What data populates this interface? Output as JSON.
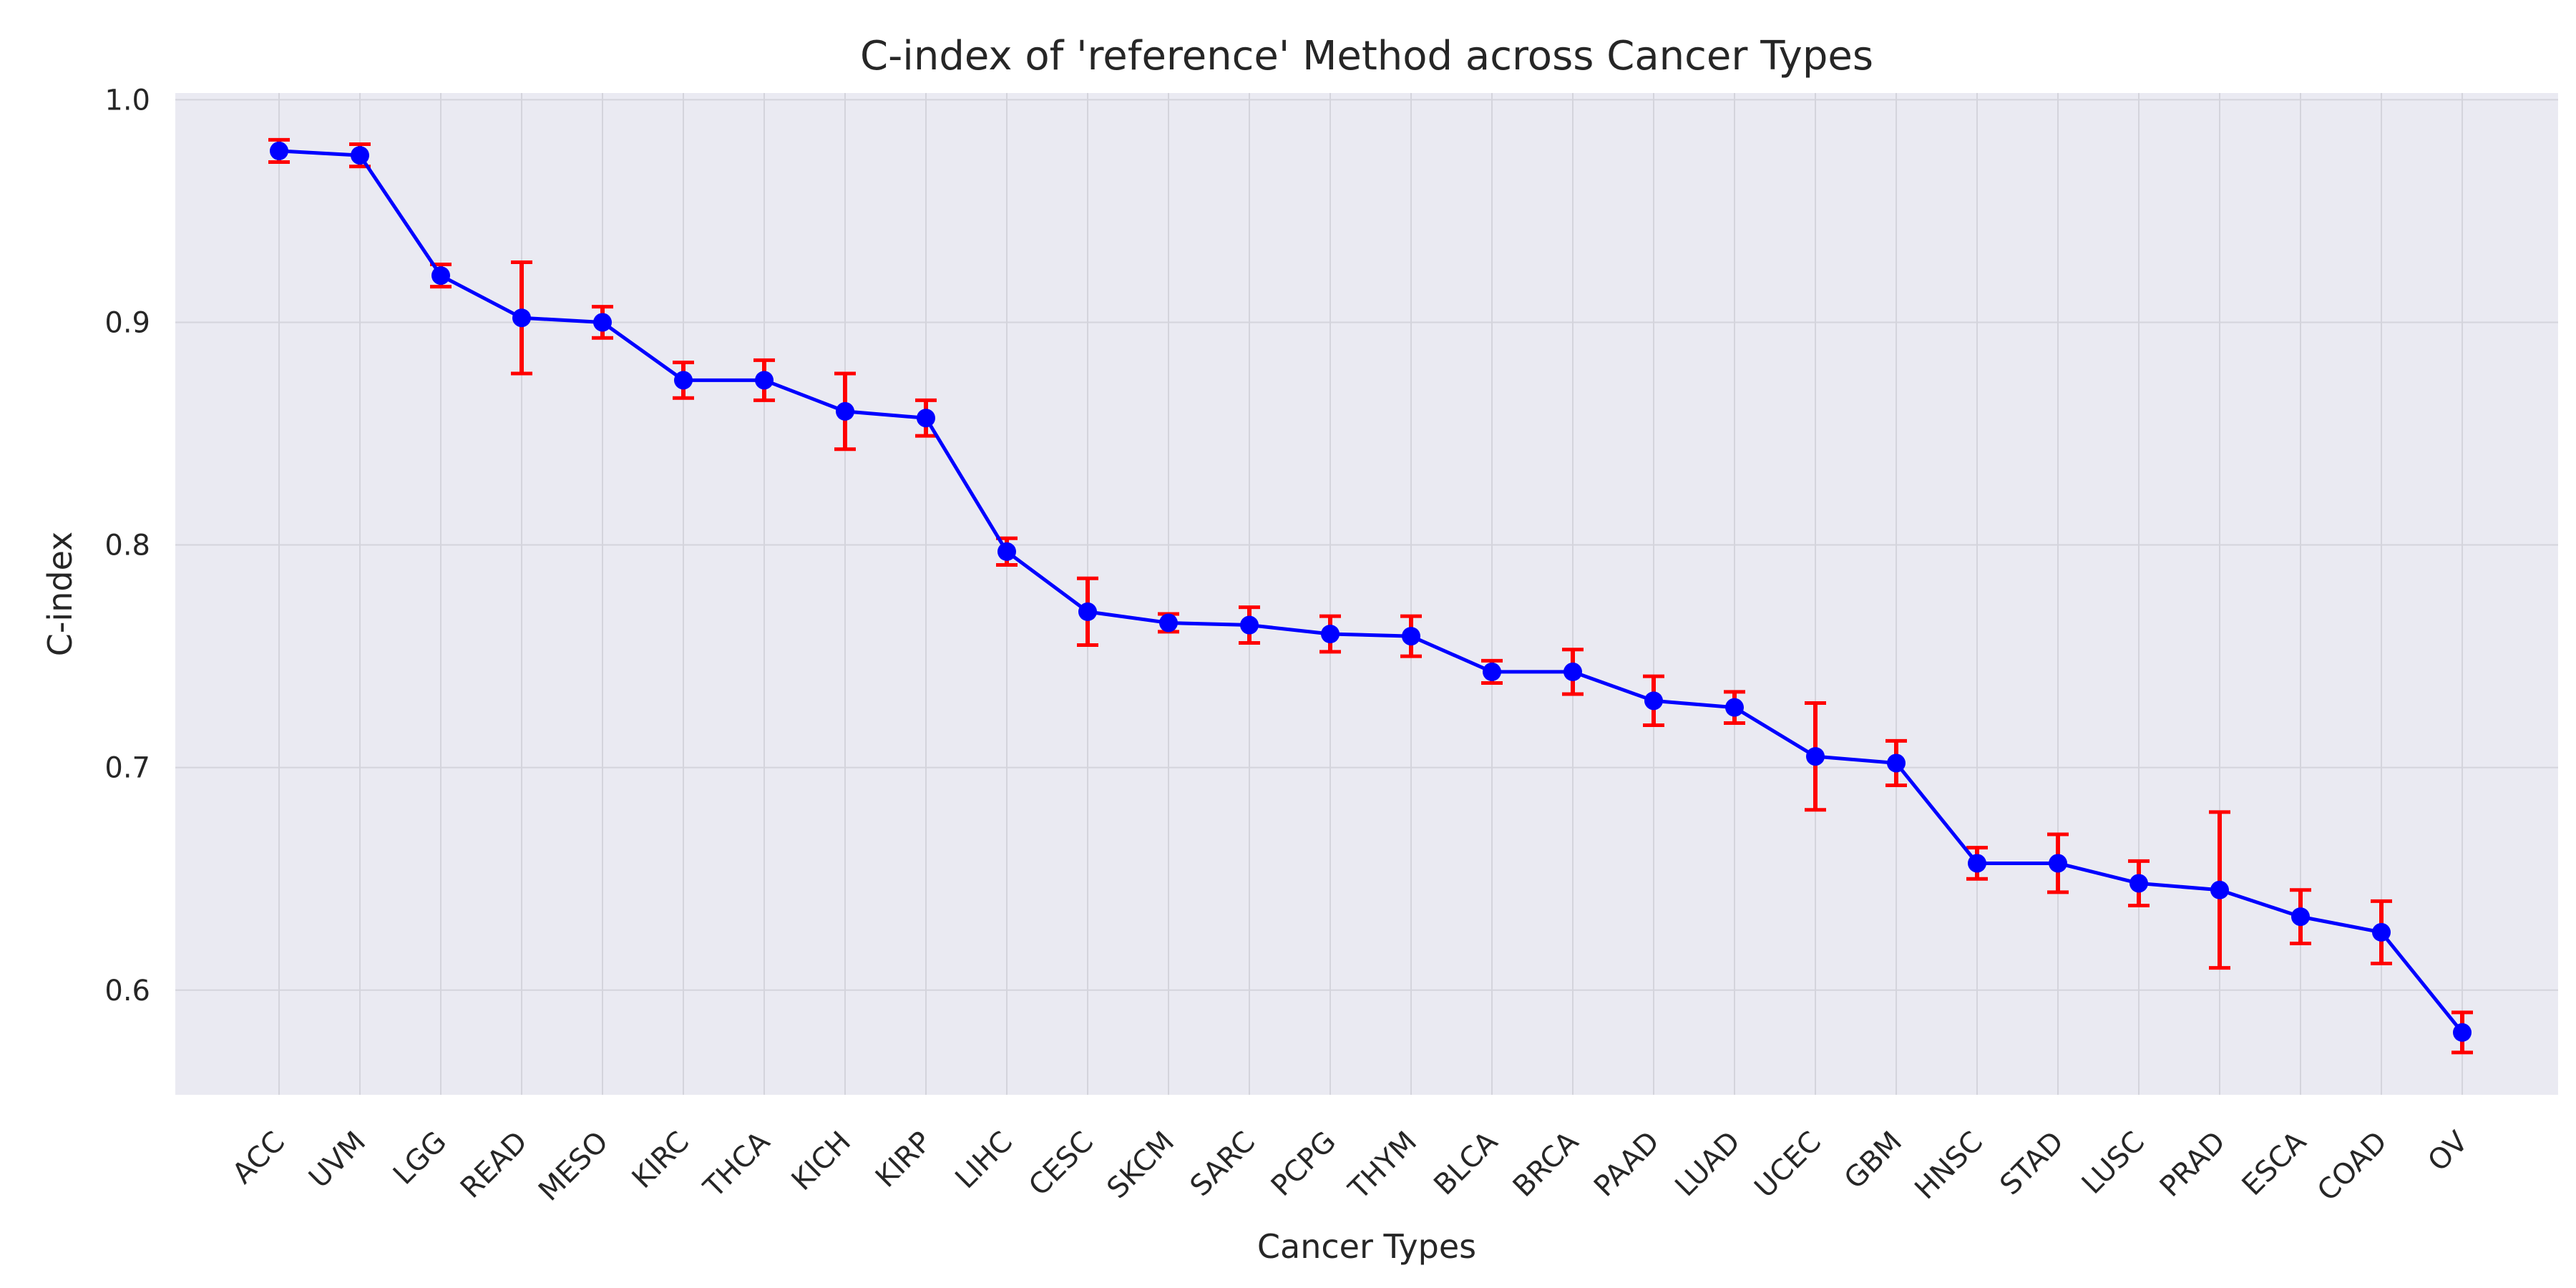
{
  "chart_data": {
    "type": "line",
    "title": "C-index of 'reference' Method across Cancer Types",
    "xlabel": "Cancer Types",
    "ylabel": "C-index",
    "ylim": [
      0.553,
      1.003
    ],
    "yticks": [
      "0.6",
      "0.7",
      "0.8",
      "0.9",
      "1.0"
    ],
    "grid": true,
    "legend": "none",
    "colors": {
      "line": "#0000ff",
      "marker": "#0000ff",
      "errorbar": "#ff0000",
      "plot_bg": "#eaeaf2",
      "grid": "#d4d4dc"
    },
    "categories": [
      "ACC",
      "UVM",
      "LGG",
      "READ",
      "MESO",
      "KIRC",
      "THCA",
      "KICH",
      "KIRP",
      "LIHC",
      "CESC",
      "SKCM",
      "SARC",
      "PCPG",
      "THYM",
      "BLCA",
      "BRCA",
      "PAAD",
      "LUAD",
      "UCEC",
      "GBM",
      "HNSC",
      "STAD",
      "LUSC",
      "PRAD",
      "ESCA",
      "COAD",
      "OV"
    ],
    "series": [
      {
        "values": [
          0.977,
          0.975,
          0.921,
          0.902,
          0.9,
          0.874,
          0.874,
          0.86,
          0.857,
          0.797,
          0.77,
          0.765,
          0.764,
          0.76,
          0.759,
          0.743,
          0.743,
          0.73,
          0.727,
          0.705,
          0.702,
          0.657,
          0.657,
          0.648,
          0.645,
          0.633,
          0.626,
          0.581
        ],
        "error": [
          0.005,
          0.005,
          0.005,
          0.025,
          0.007,
          0.008,
          0.009,
          0.017,
          0.008,
          0.006,
          0.015,
          0.004,
          0.008,
          0.008,
          0.009,
          0.005,
          0.01,
          0.011,
          0.007,
          0.024,
          0.01,
          0.007,
          0.013,
          0.01,
          0.035,
          0.012,
          0.014,
          0.009
        ]
      }
    ]
  }
}
